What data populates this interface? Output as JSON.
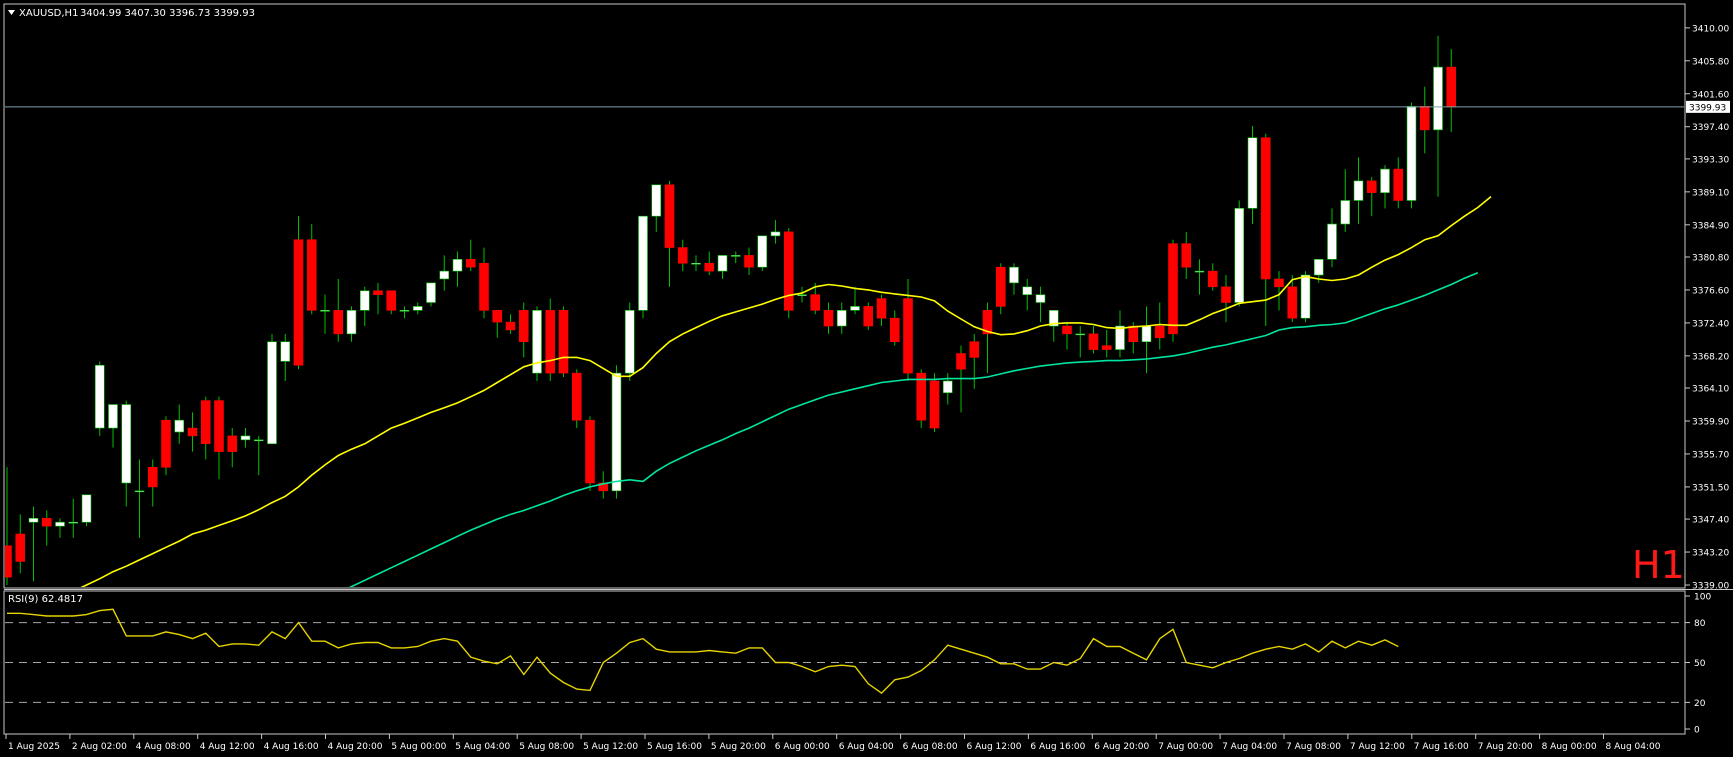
{
  "header": {
    "symbol": "XAUUSD,H1",
    "ohlc": "3404.99 3407.30 3396.73 3399.93"
  },
  "timeframe_watermark": "H1",
  "rsi": {
    "label": "RSI(9) 62.4817",
    "levels_y": [
      100,
      80,
      50,
      20,
      0
    ]
  },
  "colors": {
    "background": "#000000",
    "bull": "#ffffff",
    "bear": "#ff0000",
    "wick": "#00c000",
    "ma_fast": "#ffff00",
    "ma_slow": "#00e5a0",
    "rsi": "#e6d400",
    "price_line": "#7f9fb0"
  },
  "chart_data": {
    "type": "candlestick",
    "title": "XAUUSD,H1",
    "price_axis_ticks": [
      "3410.00",
      "3405.80",
      "3401.60",
      "3397.40",
      "3393.30",
      "3389.10",
      "3384.90",
      "3380.80",
      "3376.60",
      "3372.40",
      "3368.20",
      "3364.10",
      "3359.90",
      "3355.70",
      "3351.50",
      "3347.40",
      "3343.20",
      "3339.00"
    ],
    "ylim": [
      3339.0,
      3411.0
    ],
    "current_price": "3399.93",
    "time_axis_labels": [
      "1 Aug 2025",
      "2 Aug 02:00",
      "4 Aug 08:00",
      "4 Aug 12:00",
      "4 Aug 16:00",
      "4 Aug 20:00",
      "5 Aug 00:00",
      "5 Aug 04:00",
      "5 Aug 08:00",
      "5 Aug 12:00",
      "5 Aug 16:00",
      "5 Aug 20:00",
      "6 Aug 00:00",
      "6 Aug 04:00",
      "6 Aug 08:00",
      "6 Aug 12:00",
      "6 Aug 16:00",
      "6 Aug 20:00",
      "7 Aug 00:00",
      "7 Aug 04:00",
      "7 Aug 08:00",
      "7 Aug 12:00",
      "7 Aug 16:00",
      "7 Aug 20:00",
      "8 Aug 00:00",
      "8 Aug 04:00"
    ],
    "candles": [
      {
        "o": 3344.0,
        "h": 3354.0,
        "c": 3340.0,
        "l": 3339.0
      },
      {
        "o": 3345.5,
        "h": 3348.0,
        "c": 3342.0,
        "l": 3340.5
      },
      {
        "o": 3347.0,
        "h": 3349.0,
        "c": 3347.5,
        "l": 3339.5
      },
      {
        "o": 3347.5,
        "h": 3348.5,
        "c": 3346.5,
        "l": 3344.0
      },
      {
        "o": 3346.5,
        "h": 3347.5,
        "c": 3347.0,
        "l": 3345.0
      },
      {
        "o": 3347.0,
        "h": 3350.0,
        "c": 3347.0,
        "l": 3345.0
      },
      {
        "o": 3347.0,
        "h": 3350.0,
        "c": 3350.5,
        "l": 3346.5
      },
      {
        "o": 3359.0,
        "h": 3367.5,
        "c": 3367.0,
        "l": 3358.0
      },
      {
        "o": 3359.0,
        "h": 3362.0,
        "c": 3362.0,
        "l": 3356.5
      },
      {
        "o": 3352.0,
        "h": 3362.5,
        "c": 3362.0,
        "l": 3349.0
      },
      {
        "o": 3351.0,
        "h": 3355.0,
        "c": 3351.0,
        "l": 3345.0
      },
      {
        "o": 3354.0,
        "h": 3355.0,
        "c": 3351.5,
        "l": 3349.0
      },
      {
        "o": 3360.0,
        "h": 3360.5,
        "c": 3354.0,
        "l": 3353.0
      },
      {
        "o": 3358.5,
        "h": 3362.0,
        "c": 3360.0,
        "l": 3357.0
      },
      {
        "o": 3359.0,
        "h": 3361.0,
        "c": 3358.0,
        "l": 3356.0
      },
      {
        "o": 3362.5,
        "h": 3363.0,
        "c": 3357.0,
        "l": 3355.0
      },
      {
        "o": 3362.5,
        "h": 3363.0,
        "c": 3356.0,
        "l": 3352.5
      },
      {
        "o": 3358.0,
        "h": 3359.0,
        "c": 3356.0,
        "l": 3354.0
      },
      {
        "o": 3357.5,
        "h": 3359.0,
        "c": 3358.0,
        "l": 3356.5
      },
      {
        "o": 3357.5,
        "h": 3358.0,
        "c": 3357.5,
        "l": 3353.0
      },
      {
        "o": 3357.0,
        "h": 3371.0,
        "c": 3370.0,
        "l": 3357.0
      },
      {
        "o": 3367.5,
        "h": 3371.0,
        "c": 3370.0,
        "l": 3365.0
      },
      {
        "o": 3383.0,
        "h": 3386.0,
        "c": 3367.0,
        "l": 3366.5
      },
      {
        "o": 3383.0,
        "h": 3385.0,
        "c": 3374.0,
        "l": 3373.5
      },
      {
        "o": 3374.0,
        "h": 3376.0,
        "c": 3374.0,
        "l": 3371.0
      },
      {
        "o": 3374.0,
        "h": 3378.0,
        "c": 3371.0,
        "l": 3370.0
      },
      {
        "o": 3371.0,
        "h": 3374.5,
        "c": 3374.0,
        "l": 3370.0
      },
      {
        "o": 3374.0,
        "h": 3377.0,
        "c": 3376.5,
        "l": 3372.0
      },
      {
        "o": 3376.5,
        "h": 3377.5,
        "c": 3376.0,
        "l": 3373.5
      },
      {
        "o": 3376.5,
        "h": 3376.5,
        "c": 3374.0,
        "l": 3373.5
      },
      {
        "o": 3374.0,
        "h": 3374.5,
        "c": 3374.0,
        "l": 3373.0
      },
      {
        "o": 3374.0,
        "h": 3375.0,
        "c": 3374.5,
        "l": 3373.5
      },
      {
        "o": 3375.0,
        "h": 3377.0,
        "c": 3377.5,
        "l": 3374.5
      },
      {
        "o": 3378.0,
        "h": 3381.0,
        "c": 3379.0,
        "l": 3376.5
      },
      {
        "o": 3379.0,
        "h": 3381.5,
        "c": 3380.5,
        "l": 3377.0
      },
      {
        "o": 3380.5,
        "h": 3383.0,
        "c": 3379.5,
        "l": 3379.0
      },
      {
        "o": 3380.0,
        "h": 3382.0,
        "c": 3374.0,
        "l": 3373.0
      },
      {
        "o": 3374.0,
        "h": 3374.0,
        "c": 3372.5,
        "l": 3370.5
      },
      {
        "o": 3372.5,
        "h": 3373.5,
        "c": 3371.5,
        "l": 3371.0
      },
      {
        "o": 3374.0,
        "h": 3375.0,
        "c": 3370.0,
        "l": 3368.0
      },
      {
        "o": 3366.0,
        "h": 3374.5,
        "c": 3374.0,
        "l": 3365.0
      },
      {
        "o": 3374.0,
        "h": 3375.5,
        "c": 3366.0,
        "l": 3365.0
      },
      {
        "o": 3374.0,
        "h": 3374.5,
        "c": 3366.0,
        "l": 3365.5
      },
      {
        "o": 3366.0,
        "h": 3366.5,
        "c": 3360.0,
        "l": 3359.0
      },
      {
        "o": 3360.0,
        "h": 3360.5,
        "c": 3352.0,
        "l": 3351.0
      },
      {
        "o": 3352.0,
        "h": 3353.5,
        "c": 3351.0,
        "l": 3350.0
      },
      {
        "o": 3351.0,
        "h": 3367.0,
        "c": 3366.0,
        "l": 3350.0
      },
      {
        "o": 3366.0,
        "h": 3375.0,
        "c": 3374.0,
        "l": 3365.0
      },
      {
        "o": 3374.0,
        "h": 3386.0,
        "c": 3386.0,
        "l": 3373.0
      },
      {
        "o": 3386.0,
        "h": 3390.0,
        "c": 3390.0,
        "l": 3384.0
      },
      {
        "o": 3390.0,
        "h": 3390.5,
        "c": 3382.0,
        "l": 3377.0
      },
      {
        "o": 3382.0,
        "h": 3383.0,
        "c": 3380.0,
        "l": 3379.0
      },
      {
        "o": 3380.0,
        "h": 3381.0,
        "c": 3380.0,
        "l": 3379.0
      },
      {
        "o": 3380.0,
        "h": 3381.5,
        "c": 3379.0,
        "l": 3378.5
      },
      {
        "o": 3379.0,
        "h": 3381.0,
        "c": 3381.0,
        "l": 3378.0
      },
      {
        "o": 3381.0,
        "h": 3381.5,
        "c": 3381.0,
        "l": 3380.0
      },
      {
        "o": 3381.0,
        "h": 3382.0,
        "c": 3379.5,
        "l": 3378.5
      },
      {
        "o": 3379.5,
        "h": 3383.5,
        "c": 3383.5,
        "l": 3379.0
      },
      {
        "o": 3383.5,
        "h": 3385.5,
        "c": 3384.0,
        "l": 3382.5
      },
      {
        "o": 3384.0,
        "h": 3384.5,
        "c": 3374.0,
        "l": 3373.0
      },
      {
        "o": 3376.0,
        "h": 3377.0,
        "c": 3376.0,
        "l": 3375.0
      },
      {
        "o": 3376.0,
        "h": 3377.5,
        "c": 3374.0,
        "l": 3373.5
      },
      {
        "o": 3374.0,
        "h": 3375.0,
        "c": 3372.0,
        "l": 3371.0
      },
      {
        "o": 3372.0,
        "h": 3375.0,
        "c": 3374.0,
        "l": 3371.0
      },
      {
        "o": 3374.0,
        "h": 3377.0,
        "c": 3374.5,
        "l": 3373.5
      },
      {
        "o": 3374.5,
        "h": 3375.0,
        "c": 3372.0,
        "l": 3371.5
      },
      {
        "o": 3375.5,
        "h": 3376.0,
        "c": 3373.0,
        "l": 3372.0
      },
      {
        "o": 3373.0,
        "h": 3374.0,
        "c": 3370.0,
        "l": 3369.5
      },
      {
        "o": 3375.5,
        "h": 3378.0,
        "c": 3366.0,
        "l": 3365.0
      },
      {
        "o": 3366.0,
        "h": 3366.5,
        "c": 3360.0,
        "l": 3359.0
      },
      {
        "o": 3365.0,
        "h": 3366.0,
        "c": 3359.0,
        "l": 3358.5
      },
      {
        "o": 3363.5,
        "h": 3366.0,
        "c": 3365.0,
        "l": 3362.0
      },
      {
        "o": 3368.5,
        "h": 3369.5,
        "c": 3366.5,
        "l": 3361.0
      },
      {
        "o": 3370.0,
        "h": 3371.0,
        "c": 3368.0,
        "l": 3364.0
      },
      {
        "o": 3374.0,
        "h": 3375.0,
        "c": 3371.0,
        "l": 3366.0
      },
      {
        "o": 3379.5,
        "h": 3380.0,
        "c": 3374.5,
        "l": 3373.5
      },
      {
        "o": 3377.5,
        "h": 3380.0,
        "c": 3379.5,
        "l": 3376.0
      },
      {
        "o": 3376.0,
        "h": 3378.0,
        "c": 3377.0,
        "l": 3374.0
      },
      {
        "o": 3375.0,
        "h": 3377.0,
        "c": 3376.0,
        "l": 3372.5
      },
      {
        "o": 3372.0,
        "h": 3374.0,
        "c": 3374.0,
        "l": 3370.0
      },
      {
        "o": 3372.0,
        "h": 3372.5,
        "c": 3371.0,
        "l": 3369.0
      },
      {
        "o": 3371.0,
        "h": 3372.0,
        "c": 3371.0,
        "l": 3368.0
      },
      {
        "o": 3371.0,
        "h": 3372.0,
        "c": 3369.0,
        "l": 3368.5
      },
      {
        "o": 3369.5,
        "h": 3371.5,
        "c": 3369.0,
        "l": 3368.0
      },
      {
        "o": 3369.0,
        "h": 3374.0,
        "c": 3372.0,
        "l": 3368.0
      },
      {
        "o": 3372.0,
        "h": 3372.5,
        "c": 3370.0,
        "l": 3368.5
      },
      {
        "o": 3370.0,
        "h": 3374.5,
        "c": 3372.0,
        "l": 3366.0
      },
      {
        "o": 3372.0,
        "h": 3375.0,
        "c": 3370.5,
        "l": 3369.0
      },
      {
        "o": 3382.5,
        "h": 3383.0,
        "c": 3371.0,
        "l": 3370.0
      },
      {
        "o": 3382.5,
        "h": 3384.0,
        "c": 3379.5,
        "l": 3378.0
      },
      {
        "o": 3379.0,
        "h": 3380.5,
        "c": 3379.0,
        "l": 3376.0
      },
      {
        "o": 3379.0,
        "h": 3380.0,
        "c": 3377.0,
        "l": 3376.5
      },
      {
        "o": 3377.0,
        "h": 3378.5,
        "c": 3375.0,
        "l": 3372.5
      },
      {
        "o": 3375.0,
        "h": 3388.0,
        "c": 3387.0,
        "l": 3374.5
      },
      {
        "o": 3387.0,
        "h": 3397.5,
        "c": 3396.0,
        "l": 3385.0
      },
      {
        "o": 3396.0,
        "h": 3396.5,
        "c": 3378.0,
        "l": 3372.0
      },
      {
        "o": 3378.0,
        "h": 3379.0,
        "c": 3377.0,
        "l": 3374.0
      },
      {
        "o": 3377.0,
        "h": 3378.5,
        "c": 3373.0,
        "l": 3372.5
      },
      {
        "o": 3373.0,
        "h": 3379.0,
        "c": 3378.5,
        "l": 3372.5
      },
      {
        "o": 3378.5,
        "h": 3380.5,
        "c": 3380.5,
        "l": 3377.5
      },
      {
        "o": 3380.5,
        "h": 3387.0,
        "c": 3385.0,
        "l": 3379.5
      },
      {
        "o": 3385.0,
        "h": 3392.0,
        "c": 3388.0,
        "l": 3384.0
      },
      {
        "o": 3388.0,
        "h": 3393.5,
        "c": 3390.5,
        "l": 3385.0
      },
      {
        "o": 3390.5,
        "h": 3391.0,
        "c": 3389.0,
        "l": 3386.0
      },
      {
        "o": 3389.0,
        "h": 3392.5,
        "c": 3392.0,
        "l": 3387.0
      },
      {
        "o": 3392.0,
        "h": 3393.5,
        "c": 3388.0,
        "l": 3387.0
      },
      {
        "o": 3388.0,
        "h": 3400.5,
        "c": 3400.0,
        "l": 3387.0
      },
      {
        "o": 3400.0,
        "h": 3402.5,
        "c": 3397.0,
        "l": 3394.0
      },
      {
        "o": 3397.0,
        "h": 3409.0,
        "c": 3405.0,
        "l": 3388.5
      },
      {
        "o": 3405.0,
        "h": 3407.3,
        "c": 3399.93,
        "l": 3396.73
      }
    ],
    "ma_fast": [
      3335.0,
      3335.5,
      3336.0,
      3336.8,
      3337.5,
      3338.2,
      3339.0,
      3339.8,
      3340.7,
      3341.4,
      3342.2,
      3343.0,
      3343.8,
      3344.6,
      3345.5,
      3346.0,
      3346.6,
      3347.2,
      3347.8,
      3348.6,
      3349.5,
      3350.3,
      3351.5,
      3353.0,
      3354.3,
      3355.5,
      3356.3,
      3357.0,
      3358.0,
      3359.0,
      3359.6,
      3360.3,
      3361.0,
      3361.6,
      3362.2,
      3363.0,
      3363.8,
      3364.8,
      3365.8,
      3366.8,
      3367.3,
      3367.6,
      3368.0,
      3368.0,
      3367.6,
      3366.6,
      3365.6,
      3365.6,
      3366.7,
      3368.5,
      3370.0,
      3371.0,
      3371.8,
      3372.6,
      3373.3,
      3373.8,
      3374.3,
      3374.8,
      3375.4,
      3375.9,
      3376.2,
      3377.0,
      3377.3,
      3377.1,
      3376.8,
      3376.6,
      3376.3,
      3376.1,
      3375.9,
      3375.7,
      3375.2,
      3373.9,
      3372.9,
      3371.9,
      3371.3,
      3370.9,
      3371.0,
      3371.4,
      3372.0,
      3372.3,
      3372.4,
      3372.4,
      3372.2,
      3371.8,
      3371.7,
      3371.9,
      3372.0,
      3372.2,
      3372.1,
      3372.1,
      3372.8,
      3373.6,
      3374.2,
      3374.9,
      3375.1,
      3375.3,
      3376.0,
      3377.9,
      3378.3,
      3378.0,
      3377.8,
      3378.0,
      3378.5,
      3379.5,
      3380.4,
      3381.1,
      3382.0,
      3383.0,
      3383.5,
      3384.8,
      3386.0,
      3387.1,
      3388.5
    ],
    "ma_slow": [
      3323.0,
      3323.5,
      3324.0,
      3324.5,
      3325.0,
      3325.5,
      3326.0,
      3326.6,
      3327.2,
      3327.8,
      3328.4,
      3329.0,
      3329.5,
      3330.0,
      3330.6,
      3331.2,
      3331.8,
      3332.4,
      3333.0,
      3333.6,
      3334.2,
      3334.8,
      3335.6,
      3336.4,
      3337.2,
      3338.0,
      3338.8,
      3339.6,
      3340.4,
      3341.2,
      3342.0,
      3342.8,
      3343.6,
      3344.4,
      3345.2,
      3346.0,
      3346.7,
      3347.4,
      3348.0,
      3348.5,
      3349.1,
      3349.7,
      3350.4,
      3351.0,
      3351.5,
      3351.9,
      3352.2,
      3352.4,
      3352.2,
      3353.5,
      3354.5,
      3355.3,
      3356.1,
      3356.8,
      3357.5,
      3358.3,
      3359.0,
      3359.8,
      3360.6,
      3361.4,
      3362.0,
      3362.6,
      3363.2,
      3363.6,
      3364.0,
      3364.4,
      3364.8,
      3365.0,
      3365.2,
      3365.2,
      3365.2,
      3365.3,
      3365.3,
      3365.3,
      3365.5,
      3365.9,
      3366.3,
      3366.6,
      3366.9,
      3367.1,
      3367.3,
      3367.4,
      3367.5,
      3367.6,
      3367.6,
      3367.7,
      3367.8,
      3368.0,
      3368.2,
      3368.5,
      3368.9,
      3369.3,
      3369.6,
      3370.0,
      3370.4,
      3370.8,
      3371.5,
      3371.8,
      3371.9,
      3372.1,
      3372.2,
      3372.4,
      3373.0,
      3373.6,
      3374.2,
      3374.7,
      3375.3,
      3375.9,
      3376.6,
      3377.3,
      3378.1,
      3378.8
    ],
    "rsi_values": [
      87,
      87,
      86,
      85,
      85,
      85,
      86,
      89,
      90,
      70,
      70,
      70,
      73,
      71,
      68,
      72,
      62,
      64,
      64,
      63,
      73,
      68,
      80,
      66,
      66,
      61,
      64,
      65,
      65,
      61,
      61,
      62,
      66,
      68,
      66,
      54,
      51,
      49,
      55,
      41,
      54,
      42,
      35,
      30,
      29,
      50,
      57,
      65,
      68,
      60,
      58,
      58,
      58,
      59,
      58,
      57,
      61,
      61,
      50,
      50,
      47,
      43,
      47,
      48,
      47,
      34,
      27,
      37,
      39,
      44,
      52,
      63,
      60,
      57,
      54,
      49,
      49,
      45,
      45,
      50,
      48,
      53,
      68,
      62,
      62,
      57,
      52,
      68,
      75,
      50,
      48,
      46,
      50,
      53,
      57,
      60,
      62,
      60,
      64,
      58,
      66,
      61,
      66,
      63,
      67,
      62
    ]
  }
}
